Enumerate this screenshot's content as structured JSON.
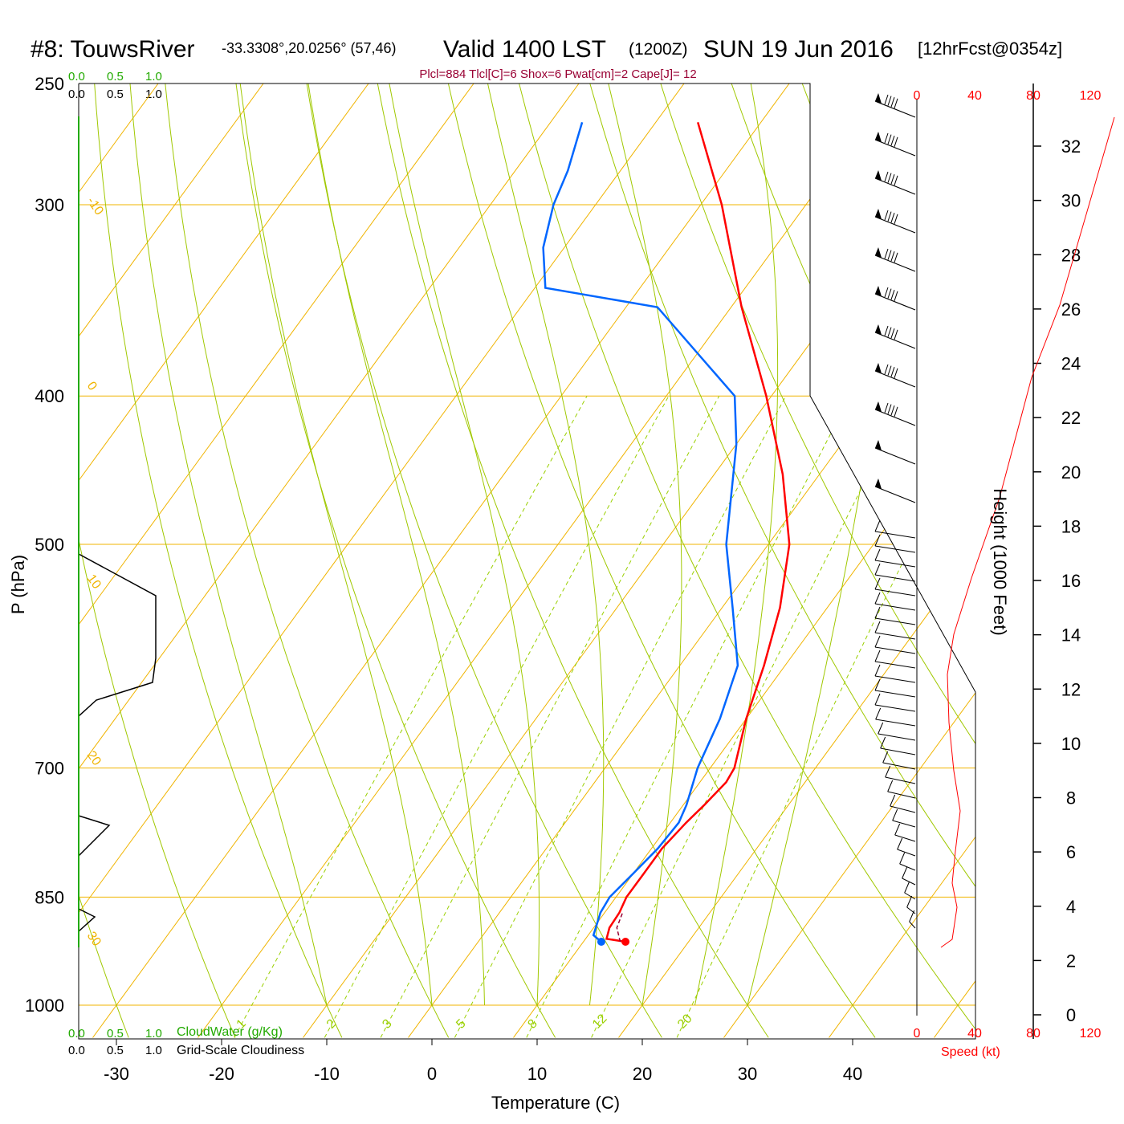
{
  "header": {
    "station": "#8: TouwsRiver",
    "coords": "-33.3308°,20.0256° (57,46)",
    "valid": "Valid 1400 LST",
    "zulu": "(1200Z)",
    "date": "SUN 19 Jun 2016",
    "forecast": "[12hrFcst@0354z]",
    "indices": "Plcl=884 Tlcl[C]=6 Shox=6 Pwat[cm]=2 Cape[J]= 12"
  },
  "colors": {
    "isotherm": "#f0b400",
    "dry_adiabat": "#a0c800",
    "mixing_ratio": "#9ad000",
    "temperature": "#ff0000",
    "dewpoint": "#0066ff",
    "cloud": "#22aa00",
    "axis": "#000000"
  },
  "chart_data": {
    "type": "line",
    "title": "#8: TouwsRiver",
    "xlabel": "Temperature (C)",
    "ylabel": "P (hPa)",
    "y2label": "Height (1000 Feet)",
    "xlim_at_1000": [
      -34,
      36
    ],
    "ylim_hpa": [
      250,
      1000
    ],
    "y_scale": "log",
    "x_ticks": [
      "-30",
      "-20",
      "-10",
      "0",
      "10",
      "20",
      "30",
      "40"
    ],
    "y_ticks": [
      "250",
      "300",
      "400",
      "500",
      "700",
      "850",
      "1000"
    ],
    "height_ticks": [
      "0",
      "2",
      "4",
      "6",
      "8",
      "10",
      "12",
      "14",
      "16",
      "18",
      "20",
      "22",
      "24",
      "26",
      "28",
      "30",
      "32"
    ],
    "isotherm_labels": [
      "-10",
      "0",
      "10",
      "20",
      "30",
      "0",
      "10",
      "20",
      "30"
    ],
    "mixing_ratio_labels": [
      "1",
      "2",
      "3",
      "5",
      "8",
      "12",
      "20"
    ],
    "series": [
      {
        "name": "Temperature",
        "color": "#ff0000",
        "points": [
          [
            909,
            14.0
          ],
          [
            905,
            12.0
          ],
          [
            890,
            11.5
          ],
          [
            870,
            11.4
          ],
          [
            850,
            11.0
          ],
          [
            820,
            11.0
          ],
          [
            790,
            11.0
          ],
          [
            760,
            11.5
          ],
          [
            740,
            12.0
          ],
          [
            715,
            12.5
          ],
          [
            700,
            12.3
          ],
          [
            650,
            10.0
          ],
          [
            600,
            8.0
          ],
          [
            550,
            5.5
          ],
          [
            500,
            2.0
          ],
          [
            450,
            -3.5
          ],
          [
            400,
            -10.5
          ],
          [
            350,
            -19.0
          ],
          [
            300,
            -28.0
          ],
          [
            265,
            -36.0
          ]
        ]
      },
      {
        "name": "Dewpoint",
        "color": "#0066ff",
        "points": [
          [
            909,
            11.7
          ],
          [
            900,
            10.5
          ],
          [
            870,
            9.6
          ],
          [
            850,
            9.4
          ],
          [
            820,
            10.0
          ],
          [
            790,
            10.6
          ],
          [
            760,
            10.8
          ],
          [
            740,
            10.3
          ],
          [
            700,
            8.8
          ],
          [
            650,
            7.5
          ],
          [
            600,
            5.5
          ],
          [
            550,
            1.0
          ],
          [
            500,
            -4.0
          ],
          [
            430,
            -10.0
          ],
          [
            400,
            -13.5
          ],
          [
            350,
            -27.0
          ],
          [
            340,
            -39.0
          ],
          [
            320,
            -42.0
          ],
          [
            300,
            -44.0
          ],
          [
            285,
            -45.0
          ],
          [
            265,
            -47.0
          ]
        ]
      }
    ],
    "top_scale_green": [
      "0.0",
      "0.5",
      "1.0"
    ],
    "top_scale_black": [
      "0.0",
      "0.5",
      "1.0"
    ],
    "bottom_cloud_label": "CloudWater (g/Kg)",
    "bottom_grid_label": "Grid-Scale Cloudiness",
    "bottom_scale_green": [
      "0.0",
      "0.5",
      "1.0"
    ],
    "bottom_scale_black": [
      "0.0",
      "0.5",
      "1.0"
    ],
    "speed_ticks": [
      "0",
      "40",
      "80",
      "120"
    ],
    "speed_label": "Speed (kt)"
  }
}
